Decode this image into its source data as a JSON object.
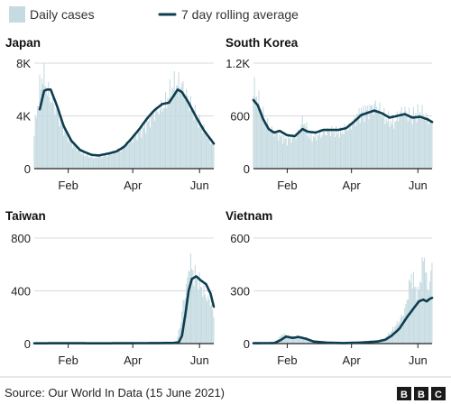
{
  "legend": {
    "daily_label": "Daily cases",
    "avg_label": "7 day rolling average"
  },
  "colors": {
    "bars": "#c5dbe1",
    "line": "#0e3d4f",
    "axis": "#222222",
    "grid": "#d9d9d9"
  },
  "footer": {
    "source": "Source: Our World In Data (15 June 2021)",
    "logo_letters": [
      "B",
      "B",
      "C"
    ]
  },
  "chart_data": [
    {
      "type": "area",
      "title": "Japan",
      "x_ticks": [
        "Feb",
        "Apr",
        "Jun"
      ],
      "y_ticks": [
        "0",
        "4K",
        "8K"
      ],
      "ylim": [
        0,
        8000
      ],
      "xlim": [
        "2021-01-01",
        "2021-06-14"
      ],
      "series": [
        {
          "name": "Daily cases",
          "style": "bars",
          "points": [
            [
              "2021-01-01",
              3000
            ],
            [
              "2021-01-06",
              6500
            ],
            [
              "2021-01-09",
              7800
            ],
            [
              "2021-01-14",
              6200
            ],
            [
              "2021-01-20",
              5000
            ],
            [
              "2021-01-27",
              3500
            ],
            [
              "2021-02-05",
              2000
            ],
            [
              "2021-02-14",
              1200
            ],
            [
              "2021-02-25",
              900
            ],
            [
              "2021-03-08",
              1100
            ],
            [
              "2021-03-20",
              1500
            ],
            [
              "2021-03-31",
              2300
            ],
            [
              "2021-04-10",
              3200
            ],
            [
              "2021-04-20",
              4400
            ],
            [
              "2021-04-30",
              5200
            ],
            [
              "2021-05-08",
              6800
            ],
            [
              "2021-05-15",
              7000
            ],
            [
              "2021-05-22",
              5600
            ],
            [
              "2021-06-01",
              3800
            ],
            [
              "2021-06-08",
              2700
            ],
            [
              "2021-06-14",
              1800
            ]
          ]
        },
        {
          "name": "7 day rolling average",
          "style": "line",
          "points": [
            [
              "2021-01-06",
              4500
            ],
            [
              "2021-01-10",
              5900
            ],
            [
              "2021-01-13",
              6000
            ],
            [
              "2021-01-16",
              6000
            ],
            [
              "2021-01-22",
              4700
            ],
            [
              "2021-01-28",
              3200
            ],
            [
              "2021-02-04",
              2100
            ],
            [
              "2021-02-12",
              1400
            ],
            [
              "2021-02-22",
              1050
            ],
            [
              "2021-03-01",
              1000
            ],
            [
              "2021-03-10",
              1150
            ],
            [
              "2021-03-17",
              1300
            ],
            [
              "2021-03-24",
              1650
            ],
            [
              "2021-03-31",
              2300
            ],
            [
              "2021-04-07",
              3000
            ],
            [
              "2021-04-14",
              3800
            ],
            [
              "2021-04-21",
              4450
            ],
            [
              "2021-04-28",
              4900
            ],
            [
              "2021-05-04",
              5000
            ],
            [
              "2021-05-09",
              5600
            ],
            [
              "2021-05-12",
              6000
            ],
            [
              "2021-05-16",
              5800
            ],
            [
              "2021-05-22",
              5000
            ],
            [
              "2021-05-29",
              3900
            ],
            [
              "2021-06-05",
              2900
            ],
            [
              "2021-06-14",
              1900
            ]
          ]
        }
      ]
    },
    {
      "type": "area",
      "title": "South Korea",
      "x_ticks": [
        "Feb",
        "Apr",
        "Jun"
      ],
      "y_ticks": [
        "0",
        "600",
        "1.2K"
      ],
      "ylim": [
        0,
        1200
      ],
      "xlim": [
        "2021-01-01",
        "2021-06-14"
      ],
      "series": [
        {
          "name": "Daily cases",
          "style": "bars",
          "points": [
            [
              "2021-01-01",
              1000
            ],
            [
              "2021-01-05",
              850
            ],
            [
              "2021-01-10",
              650
            ],
            [
              "2021-01-15",
              520
            ],
            [
              "2021-01-22",
              420
            ],
            [
              "2021-02-01",
              350
            ],
            [
              "2021-02-10",
              420
            ],
            [
              "2021-02-16",
              600
            ],
            [
              "2021-02-22",
              380
            ],
            [
              "2021-03-03",
              420
            ],
            [
              "2021-03-12",
              460
            ],
            [
              "2021-03-22",
              440
            ],
            [
              "2021-03-31",
              520
            ],
            [
              "2021-04-08",
              680
            ],
            [
              "2021-04-16",
              720
            ],
            [
              "2021-04-24",
              780
            ],
            [
              "2021-05-02",
              620
            ],
            [
              "2021-05-10",
              560
            ],
            [
              "2021-05-18",
              720
            ],
            [
              "2021-05-26",
              640
            ],
            [
              "2021-06-04",
              700
            ],
            [
              "2021-06-14",
              550
            ]
          ]
        },
        {
          "name": "7 day rolling average",
          "style": "line",
          "points": [
            [
              "2021-01-01",
              780
            ],
            [
              "2021-01-05",
              720
            ],
            [
              "2021-01-10",
              560
            ],
            [
              "2021-01-15",
              450
            ],
            [
              "2021-01-20",
              410
            ],
            [
              "2021-01-25",
              430
            ],
            [
              "2021-02-01",
              380
            ],
            [
              "2021-02-08",
              370
            ],
            [
              "2021-02-15",
              450
            ],
            [
              "2021-02-20",
              420
            ],
            [
              "2021-02-27",
              410
            ],
            [
              "2021-03-06",
              440
            ],
            [
              "2021-03-13",
              440
            ],
            [
              "2021-03-20",
              440
            ],
            [
              "2021-03-27",
              460
            ],
            [
              "2021-04-03",
              530
            ],
            [
              "2021-04-10",
              610
            ],
            [
              "2021-04-17",
              640
            ],
            [
              "2021-04-22",
              660
            ],
            [
              "2021-04-29",
              630
            ],
            [
              "2021-05-06",
              580
            ],
            [
              "2021-05-13",
              600
            ],
            [
              "2021-05-20",
              620
            ],
            [
              "2021-05-27",
              580
            ],
            [
              "2021-06-03",
              590
            ],
            [
              "2021-06-10",
              560
            ],
            [
              "2021-06-14",
              530
            ]
          ]
        }
      ]
    },
    {
      "type": "area",
      "title": "Taiwan",
      "x_ticks": [
        "Feb",
        "Apr",
        "Jun"
      ],
      "y_ticks": [
        "0",
        "400",
        "800"
      ],
      "ylim": [
        0,
        800
      ],
      "xlim": [
        "2021-01-01",
        "2021-06-14"
      ],
      "series": [
        {
          "name": "Daily cases",
          "style": "bars",
          "points": [
            [
              "2021-01-01",
              2
            ],
            [
              "2021-02-01",
              3
            ],
            [
              "2021-03-01",
              2
            ],
            [
              "2021-04-01",
              3
            ],
            [
              "2021-05-01",
              4
            ],
            [
              "2021-05-11",
              16
            ],
            [
              "2021-05-15",
              180
            ],
            [
              "2021-05-17",
              330
            ],
            [
              "2021-05-20",
              450
            ],
            [
              "2021-05-23",
              680
            ],
            [
              "2021-05-25",
              620
            ],
            [
              "2021-05-27",
              560
            ],
            [
              "2021-05-30",
              540
            ],
            [
              "2021-06-02",
              480
            ],
            [
              "2021-06-05",
              420
            ],
            [
              "2021-06-09",
              360
            ],
            [
              "2021-06-12",
              330
            ],
            [
              "2021-06-14",
              200
            ]
          ]
        },
        {
          "name": "7 day rolling average",
          "style": "line",
          "points": [
            [
              "2021-01-01",
              2
            ],
            [
              "2021-02-01",
              3
            ],
            [
              "2021-03-01",
              2
            ],
            [
              "2021-04-01",
              3
            ],
            [
              "2021-05-08",
              5
            ],
            [
              "2021-05-13",
              10
            ],
            [
              "2021-05-16",
              60
            ],
            [
              "2021-05-19",
              220
            ],
            [
              "2021-05-22",
              400
            ],
            [
              "2021-05-25",
              490
            ],
            [
              "2021-05-29",
              510
            ],
            [
              "2021-06-02",
              480
            ],
            [
              "2021-06-07",
              450
            ],
            [
              "2021-06-11",
              380
            ],
            [
              "2021-06-14",
              280
            ]
          ]
        }
      ]
    },
    {
      "type": "area",
      "title": "Vietnam",
      "x_ticks": [
        "Feb",
        "Apr",
        "Jun"
      ],
      "y_ticks": [
        "0",
        "300",
        "600"
      ],
      "ylim": [
        0,
        600
      ],
      "xlim": [
        "2021-01-01",
        "2021-06-14"
      ],
      "series": [
        {
          "name": "Daily cases",
          "style": "bars",
          "points": [
            [
              "2021-01-01",
              2
            ],
            [
              "2021-01-20",
              3
            ],
            [
              "2021-01-28",
              60
            ],
            [
              "2021-02-03",
              45
            ],
            [
              "2021-02-15",
              40
            ],
            [
              "2021-03-01",
              15
            ],
            [
              "2021-03-20",
              6
            ],
            [
              "2021-04-10",
              10
            ],
            [
              "2021-04-30",
              20
            ],
            [
              "2021-05-08",
              80
            ],
            [
              "2021-05-15",
              140
            ],
            [
              "2021-05-20",
              200
            ],
            [
              "2021-05-26",
              420
            ],
            [
              "2021-06-01",
              300
            ],
            [
              "2021-06-07",
              550
            ],
            [
              "2021-06-10",
              320
            ],
            [
              "2021-06-14",
              460
            ]
          ]
        },
        {
          "name": "7 day rolling average",
          "style": "line",
          "points": [
            [
              "2021-01-01",
              2
            ],
            [
              "2021-01-20",
              3
            ],
            [
              "2021-01-26",
              20
            ],
            [
              "2021-01-31",
              40
            ],
            [
              "2021-02-06",
              32
            ],
            [
              "2021-02-11",
              38
            ],
            [
              "2021-02-18",
              28
            ],
            [
              "2021-02-25",
              12
            ],
            [
              "2021-03-10",
              5
            ],
            [
              "2021-03-25",
              3
            ],
            [
              "2021-04-10",
              6
            ],
            [
              "2021-04-25",
              12
            ],
            [
              "2021-05-02",
              22
            ],
            [
              "2021-05-08",
              45
            ],
            [
              "2021-05-15",
              85
            ],
            [
              "2021-05-22",
              150
            ],
            [
              "2021-05-28",
              200
            ],
            [
              "2021-06-02",
              240
            ],
            [
              "2021-06-06",
              250
            ],
            [
              "2021-06-09",
              240
            ],
            [
              "2021-06-12",
              255
            ],
            [
              "2021-06-14",
              260
            ]
          ]
        }
      ]
    }
  ]
}
